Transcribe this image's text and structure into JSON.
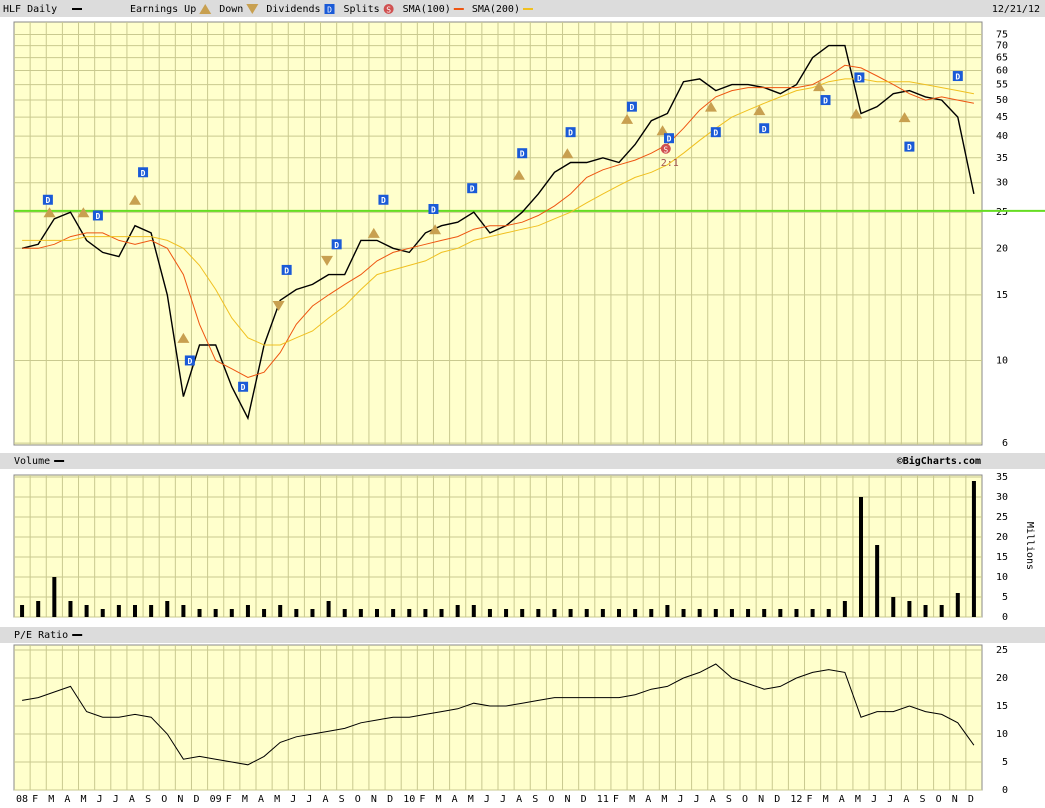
{
  "chart_data": [
    {
      "type": "line",
      "scale": "log",
      "date": "12/21/12",
      "grid": true,
      "ylim": [
        5.93,
        81
      ],
      "yticks": [
        6,
        10,
        15,
        20,
        25,
        30,
        35,
        40,
        45,
        50,
        55,
        60,
        65,
        70,
        75
      ],
      "series": [
        {
          "name": "HLF Daily",
          "color": "#000000",
          "values": [
            20,
            20.5,
            24,
            25,
            21,
            19.5,
            19,
            23,
            22,
            15,
            8,
            11,
            11,
            8.5,
            7,
            11,
            14.5,
            15.5,
            16,
            17,
            17,
            21,
            21,
            20,
            19.5,
            22,
            23,
            23.5,
            25,
            22,
            23,
            25,
            28,
            32,
            34,
            34,
            35,
            34,
            38,
            44,
            46,
            56,
            57,
            53,
            55,
            55,
            54,
            52,
            55,
            65,
            70,
            70,
            46,
            48,
            52,
            53,
            51,
            50,
            45,
            28
          ]
        },
        {
          "name": "SMA(100)",
          "color": "#ee5511",
          "values": [
            20,
            20,
            20.5,
            21.5,
            22,
            22,
            21,
            20.5,
            21,
            20,
            17,
            12.5,
            10,
            9.5,
            9,
            9.3,
            10.5,
            12.5,
            14,
            15,
            16,
            17,
            18.5,
            19.5,
            20,
            20.5,
            21,
            21.5,
            22.5,
            23,
            23,
            23.5,
            24.5,
            26,
            28,
            31,
            32.5,
            33.5,
            34.5,
            36,
            38,
            42,
            47,
            51,
            53,
            54,
            54,
            54,
            54,
            55,
            58,
            62,
            61,
            58,
            55,
            52,
            50,
            51,
            50,
            49
          ]
        },
        {
          "name": "SMA(200)",
          "color": "#f0c020",
          "values": [
            21,
            21,
            21,
            21,
            21.5,
            21.5,
            21.5,
            21.5,
            21.5,
            21,
            20,
            18,
            15.5,
            13,
            11.5,
            11,
            11,
            11.5,
            12,
            13,
            14,
            15.5,
            17,
            17.5,
            18,
            18.5,
            19.5,
            20,
            21,
            21.5,
            22,
            22.5,
            23,
            24,
            25,
            26.5,
            28,
            29.5,
            31,
            32,
            33.5,
            36,
            39,
            42,
            45,
            47,
            49,
            51,
            53,
            54,
            56,
            57,
            57,
            56,
            56,
            56,
            55,
            54,
            53,
            52
          ]
        }
      ],
      "hline": {
        "value": 25.2,
        "color": "#66dd22"
      },
      "events": [
        {
          "name": "Earnings Up",
          "symbol": "up",
          "color": "#c8a050",
          "points": [
            {
              "x": 2.2,
              "value": 25
            },
            {
              "x": 4.3,
              "value": 25
            },
            {
              "x": 7.5,
              "value": 27
            },
            {
              "x": 10.5,
              "value": 11.5
            },
            {
              "x": 22.3,
              "value": 22
            },
            {
              "x": 26.1,
              "value": 22.5
            },
            {
              "x": 31.3,
              "value": 31.5
            },
            {
              "x": 34.3,
              "value": 36
            },
            {
              "x": 38,
              "value": 44.5
            },
            {
              "x": 40.2,
              "value": 41.5
            },
            {
              "x": 43.2,
              "value": 48
            },
            {
              "x": 46.2,
              "value": 47
            },
            {
              "x": 49.9,
              "value": 54.5
            },
            {
              "x": 52.2,
              "value": 46
            },
            {
              "x": 55.2,
              "value": 45
            }
          ]
        },
        {
          "name": "Down",
          "symbol": "down",
          "color": "#c8a050",
          "points": [
            {
              "x": 16.4,
              "value": 14
            },
            {
              "x": 19.4,
              "value": 18.5
            }
          ]
        },
        {
          "name": "Dividends",
          "symbol": "square",
          "label": "D",
          "color": "#1a5ad7",
          "points": [
            {
              "x": 2.1,
              "value": 27
            },
            {
              "x": 5.2,
              "value": 24.5
            },
            {
              "x": 8,
              "value": 32
            },
            {
              "x": 10.9,
              "value": 10
            },
            {
              "x": 14.2,
              "value": 8.5
            },
            {
              "x": 16.9,
              "value": 17.5
            },
            {
              "x": 20,
              "value": 20.5
            },
            {
              "x": 22.9,
              "value": 27
            },
            {
              "x": 26,
              "value": 25.5
            },
            {
              "x": 28.4,
              "value": 29
            },
            {
              "x": 31.5,
              "value": 36
            },
            {
              "x": 34.5,
              "value": 41
            },
            {
              "x": 38.3,
              "value": 48
            },
            {
              "x": 40.6,
              "value": 39.5
            },
            {
              "x": 43.5,
              "value": 41
            },
            {
              "x": 46.5,
              "value": 42
            },
            {
              "x": 50.3,
              "value": 50
            },
            {
              "x": 52.4,
              "value": 57.5
            },
            {
              "x": 55.5,
              "value": 37.5
            },
            {
              "x": 58.5,
              "value": 58
            }
          ]
        },
        {
          "name": "Splits",
          "symbol": "circle",
          "label": "S",
          "color": "#d05050",
          "points": [
            {
              "x": 40.4,
              "value": 37,
              "note": "2:1"
            }
          ]
        }
      ]
    },
    {
      "type": "bar",
      "title": "Volume",
      "source": "©BigCharts.com",
      "y_label": "Millions",
      "color": "#000000",
      "grid": true,
      "ylim": [
        0,
        35.5
      ],
      "yticks": [
        0,
        5,
        10,
        15,
        20,
        25,
        30,
        35
      ],
      "values": [
        3,
        4,
        10,
        4,
        3,
        2,
        3,
        3,
        3,
        4,
        3,
        2,
        2,
        2,
        3,
        2,
        3,
        2,
        2,
        4,
        2,
        2,
        2,
        2,
        2,
        2,
        2,
        3,
        3,
        2,
        2,
        2,
        2,
        2,
        2,
        2,
        2,
        2,
        2,
        2,
        3,
        2,
        2,
        2,
        2,
        2,
        2,
        2,
        2,
        2,
        2,
        4,
        30,
        18,
        5,
        4,
        3,
        3,
        6,
        34
      ]
    },
    {
      "type": "line",
      "title": "P/E Ratio",
      "color": "#000000",
      "grid": true,
      "ylim": [
        0,
        25.9
      ],
      "yticks": [
        0,
        5,
        10,
        15,
        20,
        25
      ],
      "categories": [
        "08",
        "F",
        "M",
        "A",
        "M",
        "J",
        "J",
        "A",
        "S",
        "O",
        "N",
        "D",
        "09",
        "F",
        "M",
        "A",
        "M",
        "J",
        "J",
        "A",
        "S",
        "O",
        "N",
        "D",
        "10",
        "F",
        "M",
        "A",
        "M",
        "J",
        "J",
        "A",
        "S",
        "O",
        "N",
        "D",
        "11",
        "F",
        "M",
        "A",
        "M",
        "J",
        "J",
        "A",
        "S",
        "O",
        "N",
        "D",
        "12",
        "F",
        "M",
        "A",
        "M",
        "J",
        "J",
        "A",
        "S",
        "O",
        "N",
        "D"
      ],
      "values": [
        16,
        16.5,
        17.5,
        18.5,
        14,
        13,
        13,
        13.5,
        13,
        10,
        5.5,
        6,
        5.5,
        5,
        4.5,
        6,
        8.5,
        9.5,
        10,
        10.5,
        11,
        12,
        12.5,
        13,
        13,
        13.5,
        14,
        14.5,
        15.5,
        15,
        15,
        15.5,
        16,
        16.5,
        16.5,
        16.5,
        16.5,
        16.5,
        17,
        18,
        18.5,
        20,
        21,
        22.5,
        20,
        19,
        18,
        18.5,
        20,
        21,
        21.5,
        21,
        13,
        14,
        14,
        15,
        14,
        13.5,
        12,
        8
      ]
    }
  ]
}
